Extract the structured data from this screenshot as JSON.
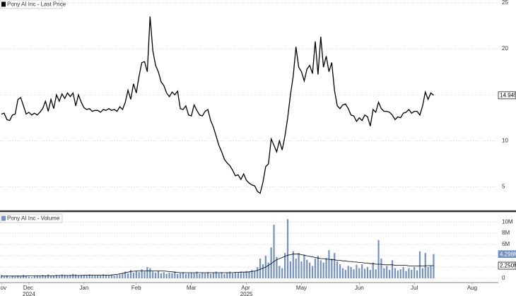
{
  "chart_data": [
    {
      "type": "line",
      "series": [
        {
          "name": "Pony AI Inc - Last Price",
          "color": "#000000",
          "values": [
            12.9,
            13,
            12.3,
            12.2,
            12.8,
            12.9,
            14.5,
            14.7,
            13.8,
            12.9,
            13.1,
            12.8,
            13,
            12.8,
            13.1,
            13.5,
            14.3,
            13.2,
            14.5,
            13.5,
            15,
            14.3,
            15.1,
            14.6,
            15.2,
            14.8,
            15.2,
            13.8,
            15,
            14.2,
            13.6,
            13.4,
            13.5,
            13.2,
            13.3,
            13.3,
            13.1,
            13.4,
            13.3,
            13.5,
            13.3,
            13.4,
            13.2,
            13.7,
            13.4,
            14.2,
            15.5,
            14.5,
            16.2,
            15.2,
            17,
            18.5,
            18.6,
            17.5,
            23.5,
            19.8,
            18.2,
            17.5,
            16.4,
            16,
            15.2,
            14.8,
            15.3,
            15,
            15.4,
            13.5,
            13.4,
            13.8,
            12.8,
            12.7,
            13.9,
            13.3,
            12.8,
            12.7,
            13.2,
            13.4,
            12.2,
            11.5,
            10.5,
            9.5,
            8.8,
            8,
            7.6,
            7.3,
            6.8,
            6.2,
            6.3,
            5.8,
            6.4,
            5.7,
            5.4,
            5.2,
            5.1,
            4.5,
            4.3,
            5.5,
            7.2,
            7.5,
            10.2,
            9.5,
            8.8,
            10,
            9,
            10.5,
            12.5,
            15,
            17,
            20.2,
            18,
            17.5,
            16.5,
            17.8,
            18.2,
            17.3,
            20.8,
            17.2,
            21.3,
            18,
            19.2,
            17.5,
            18.5,
            15.5,
            13.8,
            13.5,
            13.9,
            14,
            13.5,
            12.8,
            12.7,
            12.1,
            12.5,
            12.2,
            12.8,
            12.6,
            11.6,
            13.4,
            13.1,
            14.2,
            13.5,
            13.2,
            13.2,
            13.1,
            12.8,
            12.3,
            12.6,
            12.5,
            13,
            13.1,
            13.4,
            13,
            13.2,
            13.2,
            12.8,
            13.8,
            15.3,
            14.5,
            15.2,
            14.945,
            null,
            null,
            null,
            null,
            null,
            null,
            null,
            null,
            null,
            null,
            null,
            null,
            null,
            null,
            null,
            null,
            null,
            null,
            null,
            null,
            null,
            null,
            null
          ]
        }
      ],
      "ylim": [
        2.5,
        25.3
      ],
      "yticks": [
        5,
        10,
        15,
        20,
        25
      ],
      "grid": true
    },
    {
      "type": "bar",
      "categories": [
        "Nov",
        null,
        null,
        null,
        null,
        null,
        null,
        null,
        null,
        null,
        "Dec 2024",
        null,
        null,
        null,
        null,
        null,
        null,
        null,
        null,
        null,
        null,
        null,
        null,
        null,
        null,
        null,
        null,
        null,
        null,
        null,
        "Jan",
        null,
        null,
        null,
        null,
        null,
        null,
        null,
        null,
        null,
        null,
        null,
        null,
        null,
        null,
        null,
        null,
        null,
        null,
        "Feb",
        null,
        null,
        null,
        null,
        null,
        null,
        null,
        null,
        null,
        null,
        null,
        null,
        null,
        null,
        null,
        null,
        null,
        null,
        null,
        "Mar",
        null,
        null,
        null,
        null,
        null,
        null,
        null,
        null,
        null,
        null,
        null,
        null,
        null,
        null,
        null,
        null,
        null,
        null,
        null,
        "Apr 2025",
        null,
        null,
        null,
        null,
        null,
        null,
        null,
        null,
        null,
        null,
        null,
        null,
        null,
        null,
        null,
        null,
        null,
        null,
        null,
        "May",
        null,
        null,
        null,
        null,
        null,
        null,
        null,
        null,
        null,
        null,
        null,
        null,
        null,
        null,
        null,
        null,
        null,
        null,
        null,
        null,
        "Jun",
        null,
        null,
        null,
        null,
        null,
        null,
        null,
        null,
        null,
        null,
        null,
        null,
        null,
        null,
        null,
        null,
        null,
        null,
        null,
        "Jul",
        null,
        null,
        null,
        null,
        null,
        null,
        null,
        null,
        null,
        null,
        null,
        null,
        null,
        null,
        null,
        null,
        null,
        null,
        null,
        null,
        "Aug",
        null,
        null,
        null,
        null,
        null,
        null,
        null,
        null,
        null
      ],
      "series": [
        {
          "name": "Pony AI Inc - Volume",
          "type": "bar",
          "color": "#7391c4",
          "values": [
            0.6,
            0.3,
            0.5,
            0.2,
            0.4,
            0.3,
            0.5,
            0.3,
            0.6,
            0.4,
            0.3,
            0.2,
            0.4,
            0.5,
            0.4,
            0.6,
            0.5,
            0.7,
            0.4,
            0.5,
            0.6,
            0.5,
            0.7,
            0.6,
            0.5,
            0.6,
            0.8,
            0.7,
            0.5,
            0.6,
            0.6,
            0.5,
            0.7,
            0.6,
            0.5,
            0.6,
            0.5,
            0.7,
            0.6,
            0.5,
            0.6,
            0.5,
            0.6,
            0.7,
            0.8,
            1.2,
            0.9,
            1.5,
            1.0,
            1.3,
            1.1,
            1.6,
            1.2,
            2.0,
            1.8,
            1.2,
            1.0,
            1.3,
            0.9,
            1.1,
            0.8,
            1.0,
            0.9,
            1.2,
            0.8,
            0.9,
            1.1,
            0.8,
            0.9,
            1.0,
            0.9,
            1.2,
            0.8,
            1.0,
            0.9,
            1.1,
            0.8,
            1.0,
            1.2,
            0.9,
            1.1,
            0.8,
            1.0,
            1.2,
            0.9,
            1.1,
            1.0,
            1.2,
            1.1,
            1.3,
            1.2,
            1.5,
            1.3,
            2.0,
            3.5,
            2.5,
            4.0,
            2.8,
            5.5,
            9.5,
            3.8,
            2.2,
            1.8,
            4.5,
            10.5,
            3.0,
            4.8,
            3.5,
            4.5,
            3.0,
            4.2,
            3.3,
            2.8,
            2.2,
            3.5,
            4.0,
            3.2,
            2.8,
            3.6,
            5.0,
            3.5,
            4.5,
            3.0,
            2.5,
            1.8,
            1.5,
            2.2,
            2.0,
            1.6,
            2.4,
            1.8,
            2.5,
            1.7,
            2.0,
            1.5,
            2.8,
            1.6,
            6.8,
            3.5,
            1.8,
            2.2,
            1.5,
            3.2,
            1.8,
            1.4,
            1.6,
            2.0,
            1.3,
            1.8,
            1.5,
            2.0,
            1.4,
            4.8,
            1.8,
            4.5,
            2.0,
            2.2,
            4.298,
            null,
            null,
            null,
            null,
            null,
            null,
            null,
            null,
            null,
            null,
            null,
            null,
            null,
            null,
            null,
            null,
            null,
            null,
            null,
            null,
            null,
            null,
            null
          ],
          "value_labels": [
            null,
            null,
            null,
            null,
            null,
            null,
            null,
            null,
            null,
            null,
            null,
            null,
            null,
            null,
            null,
            null,
            null,
            null,
            null,
            null,
            null,
            null,
            null,
            null,
            null,
            null,
            null,
            null,
            null,
            null,
            null,
            null,
            null,
            null,
            null,
            null,
            null,
            null,
            null,
            null,
            null,
            null,
            null,
            null,
            null,
            null,
            null,
            null,
            null,
            null,
            null,
            null,
            null,
            null,
            null,
            null,
            null,
            null,
            null,
            null,
            null,
            null,
            null,
            null,
            null,
            null,
            null,
            null,
            null,
            null,
            null,
            null,
            null,
            null,
            null,
            null,
            null,
            null,
            null,
            null,
            null,
            null,
            null,
            null,
            null,
            null,
            null,
            null,
            null,
            null,
            null,
            null,
            null,
            null,
            null,
            null,
            null,
            null,
            null,
            null,
            null,
            null,
            null,
            null,
            null,
            null,
            null,
            null,
            null,
            null,
            null,
            null,
            null,
            null,
            null,
            null,
            null,
            null,
            null,
            null,
            null,
            null,
            null,
            null,
            null,
            null,
            null,
            null,
            null,
            null,
            null,
            null,
            null,
            null,
            null,
            null,
            null,
            null,
            null,
            null,
            null,
            null,
            null,
            null,
            null,
            null,
            null,
            null,
            null,
            null,
            null,
            null,
            null,
            null,
            null,
            null,
            null,
            "4.298M",
            null,
            null,
            null,
            null,
            null,
            null,
            null,
            null,
            null,
            null,
            null,
            null,
            null,
            null,
            null,
            null,
            null,
            null,
            null,
            null,
            null,
            null,
            null
          ]
        },
        {
          "type": "line",
          "color": "#000000",
          "values": [
            0.4,
            0.4,
            0.4,
            0.4,
            0.4,
            0.4,
            0.4,
            0.4,
            0.4,
            0.4,
            0.45,
            0.45,
            0.45,
            0.45,
            0.45,
            0.45,
            0.45,
            0.45,
            0.45,
            0.45,
            0.5,
            0.5,
            0.5,
            0.5,
            0.5,
            0.5,
            0.5,
            0.5,
            0.5,
            0.5,
            0.55,
            0.55,
            0.55,
            0.55,
            0.55,
            0.55,
            0.55,
            0.55,
            0.55,
            0.55,
            0.6,
            0.65,
            0.7,
            0.8,
            0.9,
            1.0,
            1.1,
            1.2,
            1.25,
            1.3,
            1.3,
            1.3,
            1.3,
            1.3,
            1.3,
            1.3,
            1.3,
            1.3,
            1.3,
            1.3,
            1.25,
            1.2,
            1.15,
            1.1,
            1.05,
            1.0,
            1.0,
            1.0,
            1.0,
            1.0,
            1.0,
            1.0,
            1.0,
            1.0,
            1.0,
            1.0,
            1.0,
            1.0,
            1.0,
            1.0,
            1.0,
            1.0,
            1.0,
            1.0,
            1.0,
            1.05,
            1.05,
            1.1,
            1.1,
            1.1,
            1.15,
            1.2,
            1.3,
            1.4,
            1.6,
            1.8,
            2.0,
            2.3,
            2.6,
            3.0,
            3.3,
            3.5,
            3.7,
            3.9,
            4.1,
            4.2,
            4.3,
            4.3,
            4.3,
            4.2,
            4.1,
            4.0,
            3.9,
            3.8,
            3.7,
            3.6,
            3.5,
            3.5,
            3.4,
            3.4,
            3.3,
            3.3,
            3.2,
            3.2,
            3.1,
            3.1,
            3.0,
            3.0,
            2.9,
            2.9,
            2.8,
            2.8,
            2.7,
            2.7,
            2.6,
            2.6,
            2.5,
            2.5,
            2.5,
            2.4,
            2.4,
            2.4,
            2.4,
            2.3,
            2.3,
            2.3,
            2.3,
            2.3,
            2.2,
            2.2,
            2.2,
            2.2,
            2.2,
            2.2,
            2.2,
            2.25,
            2.25,
            2.25,
            null,
            null,
            null,
            null,
            null,
            null,
            null,
            null,
            null,
            null,
            null,
            null,
            null,
            null,
            null,
            null,
            null,
            null,
            null,
            null,
            null,
            null,
            null
          ],
          "value_labels": [
            null,
            null,
            null,
            null,
            null,
            null,
            null,
            null,
            null,
            null,
            null,
            null,
            null,
            null,
            null,
            null,
            null,
            null,
            null,
            null,
            null,
            null,
            null,
            null,
            null,
            null,
            null,
            null,
            null,
            null,
            null,
            null,
            null,
            null,
            null,
            null,
            null,
            null,
            null,
            null,
            null,
            null,
            null,
            null,
            null,
            null,
            null,
            null,
            null,
            null,
            null,
            null,
            null,
            null,
            null,
            null,
            null,
            null,
            null,
            null,
            null,
            null,
            null,
            null,
            null,
            null,
            null,
            null,
            null,
            null,
            null,
            null,
            null,
            null,
            null,
            null,
            null,
            null,
            null,
            null,
            null,
            null,
            null,
            null,
            null,
            null,
            null,
            null,
            null,
            null,
            null,
            null,
            null,
            null,
            null,
            null,
            null,
            null,
            null,
            null,
            null,
            null,
            null,
            null,
            null,
            null,
            null,
            null,
            null,
            null,
            null,
            null,
            null,
            null,
            null,
            null,
            null,
            null,
            null,
            null,
            null,
            null,
            null,
            null,
            null,
            null,
            null,
            null,
            null,
            null,
            null,
            null,
            null,
            null,
            null,
            null,
            null,
            null,
            null,
            null,
            null,
            null,
            null,
            null,
            null,
            null,
            null,
            null,
            null,
            null,
            null,
            null,
            null,
            null,
            null,
            null,
            null,
            "2.250M",
            null,
            null,
            null,
            null,
            null,
            null,
            null,
            null,
            null,
            null,
            null,
            null,
            null,
            null,
            null,
            null,
            null,
            null,
            null,
            null,
            null,
            null,
            null
          ]
        }
      ],
      "ylim": [
        0,
        11.4
      ],
      "yticks": [
        0,
        {
          "value": 2,
          "label": "2M"
        },
        {
          "value": 4,
          "label": "4M"
        },
        {
          "value": 6,
          "label": "6M"
        },
        {
          "value": 8,
          "label": "8M"
        },
        {
          "value": 10,
          "label": "10M"
        }
      ],
      "grid": true
    }
  ]
}
